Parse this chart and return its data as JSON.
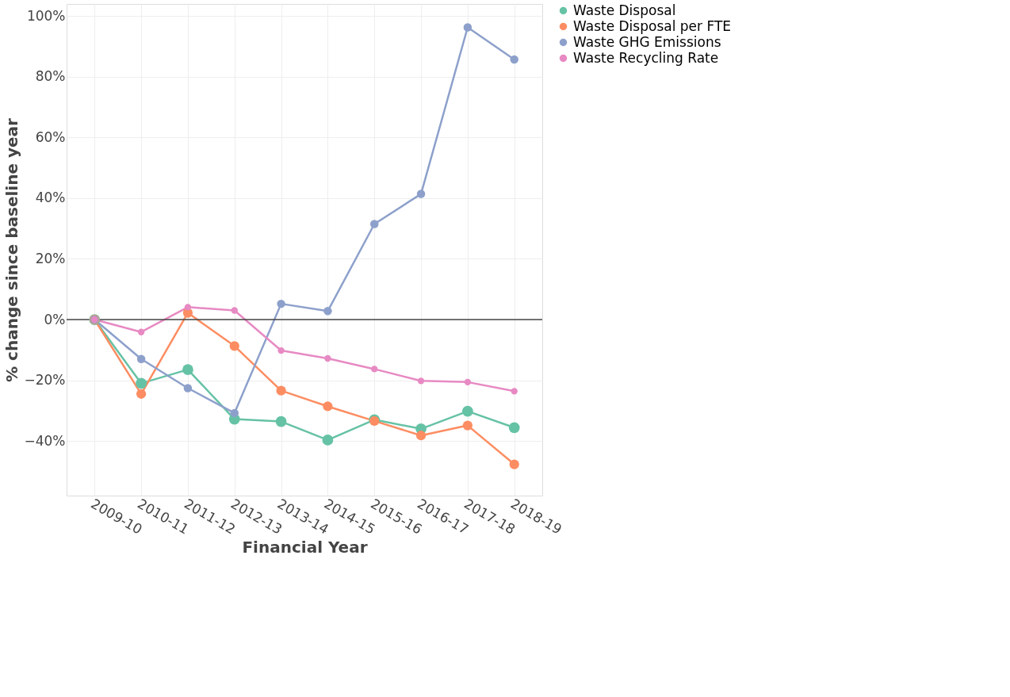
{
  "chart_data": {
    "type": "line",
    "xlabel": "Financial Year",
    "ylabel": "% change since baseline year",
    "categories": [
      "2009-10",
      "2010-11",
      "2011-12",
      "2012-13",
      "2013-14",
      "2014-15",
      "2015-16",
      "2016-17",
      "2017-18",
      "2018-19"
    ],
    "series": [
      {
        "name": "Waste Disposal",
        "color": "#66c2a5",
        "values": [
          0,
          -21,
          -16.5,
          -32.8,
          -33.6,
          -39.7,
          -33,
          -36,
          -30.2,
          -35.6
        ]
      },
      {
        "name": "Waste Disposal per FTE",
        "color": "#fc8d62",
        "values": [
          0,
          -24.5,
          2.2,
          -8.7,
          -23.4,
          -28.6,
          -33.4,
          -38.2,
          -34.9,
          -47.7
        ]
      },
      {
        "name": "Waste GHG Emissions",
        "color": "#8da0cb",
        "values": [
          0,
          -13,
          -22.6,
          -30.8,
          5.2,
          2.8,
          31.5,
          41.4,
          96.3,
          85.7
        ]
      },
      {
        "name": "Waste Recycling Rate",
        "color": "#e78ac3",
        "values": [
          0,
          -4.1,
          4.1,
          3.0,
          -10.2,
          -12.8,
          -16.3,
          -20.2,
          -20.6,
          -23.6
        ]
      }
    ],
    "ylim": [
      -58,
      104
    ],
    "yticks": [
      {
        "value": -40,
        "label": "−40%"
      },
      {
        "value": -20,
        "label": "−20%"
      },
      {
        "value": 0,
        "label": "0%"
      },
      {
        "value": 20,
        "label": "20%"
      },
      {
        "value": 40,
        "label": "40%"
      },
      {
        "value": 60,
        "label": "60%"
      },
      {
        "value": 80,
        "label": "80%"
      },
      {
        "value": 100,
        "label": "100%"
      }
    ],
    "ref_lines": [
      {
        "axis": "y",
        "value": 0,
        "color": "#444444"
      }
    ],
    "grid": true,
    "legend": "top right",
    "marker": "circle",
    "line_style": "solid"
  }
}
